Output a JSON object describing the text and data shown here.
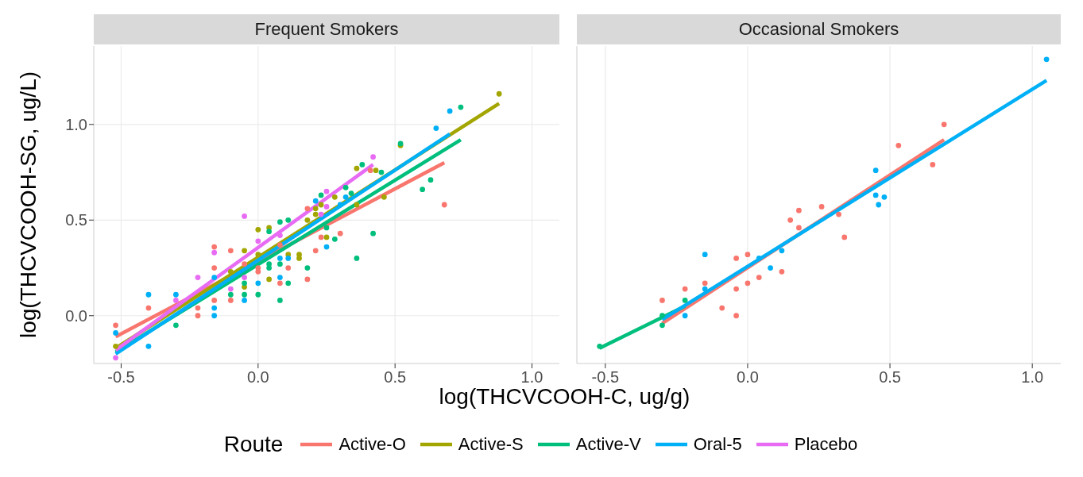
{
  "chart_data": [
    {
      "type": "scatter",
      "title": "Frequent Smokers",
      "xlabel": "log(THCVCOOH-C, ug/g)",
      "ylabel": "log(THCVCOOH-SG, ug/L)",
      "legend_title": "Route",
      "legend": "bottom",
      "grid": true,
      "xlim": [
        -0.6,
        1.1
      ],
      "xticks": [
        {
          "value": -0.5,
          "label": "-0.5"
        },
        {
          "value": 0,
          "label": "0.0"
        },
        {
          "value": 0.5,
          "label": "0.5"
        },
        {
          "value": 1,
          "label": "1.0"
        }
      ],
      "ylim": [
        -0.25,
        1.41
      ],
      "yticks": [
        {
          "value": 0,
          "label": "0.0"
        },
        0.5,
        {
          "value": 1,
          "label": "1.0"
        }
      ],
      "series": [
        {
          "marker": "circle",
          "color": "#f8766d",
          "x": [
            -0.52,
            -0.4,
            -0.22,
            -0.22,
            -0.16,
            -0.16,
            -0.16,
            -0.1,
            -0.1,
            -0.05,
            0.0,
            0.0,
            0.08,
            0.08,
            0.11,
            0.18,
            0.18,
            0.21,
            0.23,
            0.3,
            0.41,
            0.68
          ],
          "values": [
            -0.05,
            0.04,
            0.04,
            0.0,
            0.36,
            0.25,
            0.08,
            0.34,
            0.08,
            0.27,
            0.25,
            0.23,
            0.17,
            0.37,
            0.25,
            0.56,
            0.19,
            0.34,
            0.41,
            0.43,
            0.76,
            0.58
          ]
        },
        {
          "marker": "circle",
          "color": "#a3a500",
          "x": [
            -0.52,
            -0.1,
            -0.05,
            -0.05,
            0.0,
            0.0,
            0.04,
            0.04,
            0.11,
            0.15,
            0.15,
            0.18,
            0.21,
            0.21,
            0.23,
            0.25,
            0.28,
            0.36,
            0.36,
            0.43,
            0.46,
            0.52,
            0.88
          ],
          "values": [
            -0.16,
            0.23,
            0.34,
            0.15,
            0.45,
            0.32,
            0.46,
            0.19,
            0.32,
            0.32,
            0.3,
            0.5,
            0.53,
            0.56,
            0.58,
            0.41,
            0.62,
            0.77,
            0.58,
            0.76,
            0.62,
            0.89,
            1.16
          ]
        },
        {
          "marker": "circle",
          "color": "#00bf7d",
          "x": [
            -0.3,
            -0.1,
            -0.05,
            -0.05,
            0.0,
            0.04,
            0.04,
            0.04,
            0.08,
            0.08,
            0.08,
            0.11,
            0.11,
            0.18,
            0.23,
            0.25,
            0.28,
            0.32,
            0.34,
            0.36,
            0.38,
            0.42,
            0.45,
            0.52,
            0.6,
            0.63,
            0.74
          ],
          "values": [
            -0.05,
            0.11,
            0.17,
            0.11,
            0.11,
            0.44,
            0.27,
            0.25,
            0.49,
            0.27,
            0.08,
            0.5,
            0.17,
            0.25,
            0.63,
            0.46,
            0.4,
            0.67,
            0.64,
            0.3,
            0.79,
            0.43,
            0.75,
            0.9,
            0.66,
            0.71,
            1.09
          ]
        },
        {
          "marker": "circle",
          "color": "#00b0f6",
          "x": [
            -0.52,
            -0.4,
            -0.4,
            -0.3,
            -0.16,
            -0.16,
            -0.16,
            -0.05,
            0.0,
            0.08,
            0.08,
            0.11,
            0.21,
            0.25,
            0.3,
            0.32,
            0.65,
            0.7
          ],
          "values": [
            -0.09,
            0.11,
            -0.16,
            0.11,
            0.2,
            0.04,
            0.0,
            0.08,
            0.17,
            0.2,
            0.3,
            0.3,
            0.6,
            0.36,
            0.58,
            0.62,
            0.98,
            1.07
          ]
        },
        {
          "marker": "circle",
          "color": "#e76bf3",
          "x": [
            -0.52,
            -0.3,
            -0.22,
            -0.16,
            -0.1,
            -0.05,
            -0.05,
            0.0,
            0.08,
            0.23,
            0.25,
            0.25,
            0.42
          ],
          "values": [
            -0.22,
            0.08,
            0.2,
            0.33,
            0.14,
            0.52,
            0.2,
            0.39,
            0.42,
            0.53,
            0.65,
            0.57,
            0.83
          ]
        },
        {
          "type": "line",
          "name": "Active-O",
          "color": "#f8766d",
          "x": [
            -0.52,
            0.68
          ],
          "values": [
            -0.11,
            0.8
          ]
        },
        {
          "type": "line",
          "name": "Active-S",
          "color": "#a3a500",
          "x": [
            -0.52,
            0.88
          ],
          "values": [
            -0.17,
            1.11
          ]
        },
        {
          "type": "line",
          "name": "Active-V",
          "color": "#00bf7d",
          "x": [
            -0.52,
            0.74
          ],
          "values": [
            -0.19,
            0.92
          ]
        },
        {
          "type": "line",
          "name": "Oral-5",
          "color": "#00b0f6",
          "x": [
            -0.52,
            0.7
          ],
          "values": [
            -0.2,
            0.95
          ]
        },
        {
          "type": "line",
          "name": "Placebo",
          "color": "#e76bf3",
          "x": [
            -0.52,
            0.42
          ],
          "values": [
            -0.18,
            0.79
          ]
        }
      ]
    },
    {
      "type": "scatter",
      "title": "Occasional Smokers",
      "grid": true,
      "tick_labels": "x",
      "xlim": [
        -0.6,
        1.1
      ],
      "xticks": [
        {
          "value": -0.5,
          "label": "-0.5"
        },
        {
          "value": 0,
          "label": "0.0"
        },
        {
          "value": 0.5,
          "label": "0.5"
        },
        {
          "value": 1,
          "label": "1.0"
        }
      ],
      "ylim": [
        -0.25,
        1.41
      ],
      "yticks": [
        0,
        0.5,
        1
      ],
      "series": [
        {
          "marker": "circle",
          "color": "#f8766d",
          "x": [
            -0.3,
            -0.22,
            -0.15,
            -0.09,
            -0.04,
            -0.04,
            -0.04,
            0.0,
            0.0,
            0.04,
            0.12,
            0.15,
            0.18,
            0.18,
            0.26,
            0.32,
            0.34,
            0.53,
            0.65,
            0.69
          ],
          "values": [
            0.08,
            0.14,
            0.17,
            0.04,
            0.0,
            0.14,
            0.3,
            0.32,
            0.17,
            0.2,
            0.23,
            0.5,
            0.55,
            0.46,
            0.57,
            0.53,
            0.41,
            0.89,
            0.79,
            1.0
          ]
        },
        {
          "marker": "circle",
          "color": "#00bf7d",
          "x": [
            -0.52,
            -0.3,
            -0.3,
            -0.22
          ],
          "values": [
            -0.16,
            0.0,
            -0.05,
            0.08
          ]
        },
        {
          "marker": "circle",
          "color": "#00b0f6",
          "x": [
            -0.22,
            -0.15,
            -0.15,
            0.04,
            0.08,
            0.12,
            0.45,
            0.45,
            0.48,
            0.46,
            1.05
          ],
          "values": [
            0.0,
            0.32,
            0.14,
            0.3,
            0.25,
            0.34,
            0.76,
            0.63,
            0.62,
            0.58,
            1.34
          ]
        },
        {
          "type": "line",
          "color": "#f8766d",
          "x": [
            -0.3,
            0.69
          ],
          "values": [
            -0.04,
            0.92
          ]
        },
        {
          "type": "line",
          "color": "#00bf7d",
          "x": [
            -0.52,
            -0.22
          ],
          "values": [
            -0.17,
            0.05
          ]
        },
        {
          "type": "line",
          "color": "#00b0f6",
          "x": [
            -0.3,
            1.05
          ],
          "values": [
            -0.02,
            1.23
          ]
        }
      ]
    }
  ]
}
